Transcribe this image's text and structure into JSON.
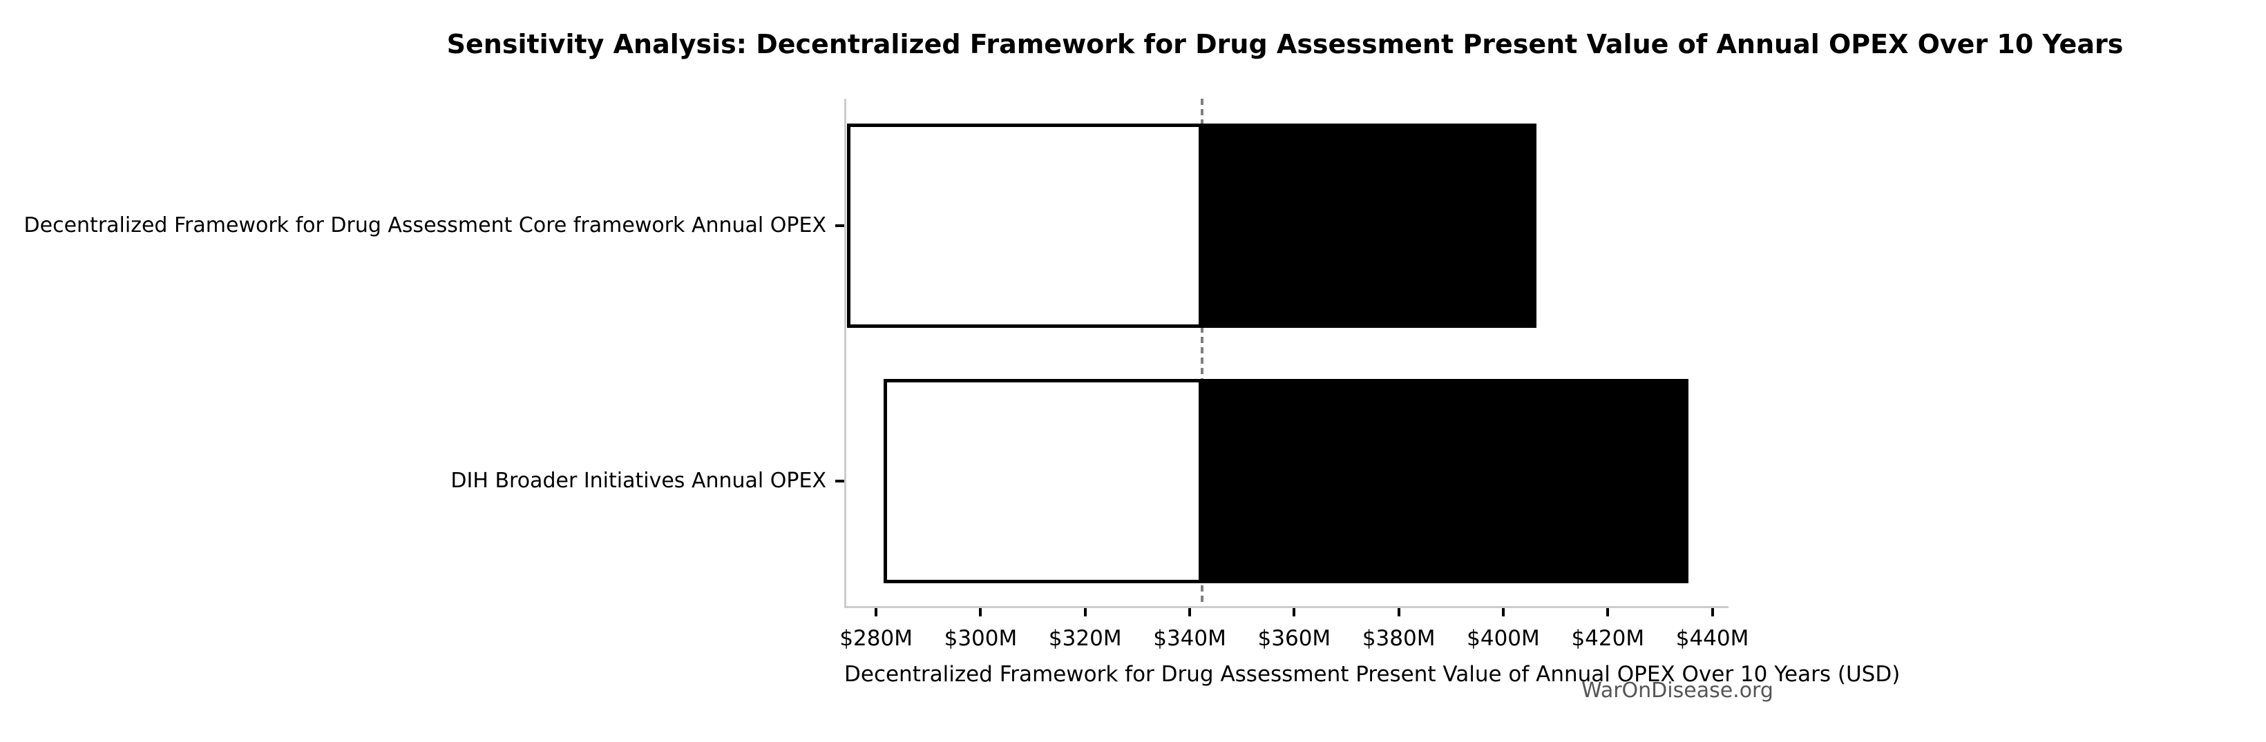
{
  "title": "Sensitivity Analysis: Decentralized Framework for Drug Assessment Present Value of Annual OPEX Over 10 Years",
  "watermark": "WarOnDisease.org",
  "chart_data": {
    "type": "bar",
    "subtype": "tornado-horizontal",
    "title": "Sensitivity Analysis: Decentralized Framework for Drug Assessment Present Value of Annual OPEX Over 10 Years",
    "xlabel": "Decentralized Framework for Drug Assessment Present Value of Annual OPEX Over 10 Years (USD)",
    "ylabel": "",
    "categories": [
      "Decentralized Framework for Drug Assessment Core framework Annual OPEX",
      "DIH Broader Initiatives Annual OPEX"
    ],
    "series": [
      {
        "name": "Decentralized Framework for Drug Assessment Core framework Annual OPEX",
        "low_musd": 274,
        "high_musd": 406
      },
      {
        "name": "DIH Broader Initiatives Annual OPEX",
        "low_musd": 281,
        "high_musd": 435
      }
    ],
    "base_value_musd": 342,
    "x_ticks_musd": [
      280,
      300,
      320,
      340,
      360,
      380,
      400,
      420,
      440
    ],
    "x_tick_labels": [
      "$280M",
      "$300M",
      "$320M",
      "$340M",
      "$360M",
      "$380M",
      "$400M",
      "$420M",
      "$440M"
    ],
    "xlim_musd": [
      273.9,
      442.7
    ],
    "grid": false,
    "legend_position": "none",
    "colors": {
      "bar_low_fill": "#ffffff",
      "bar_high_fill": "#000000",
      "bar_edge": "#000000",
      "baseline_dash": "#7f7f7f",
      "axis_spine": "#cccccc",
      "tick": "#000000",
      "watermark_text": "#555555"
    }
  }
}
